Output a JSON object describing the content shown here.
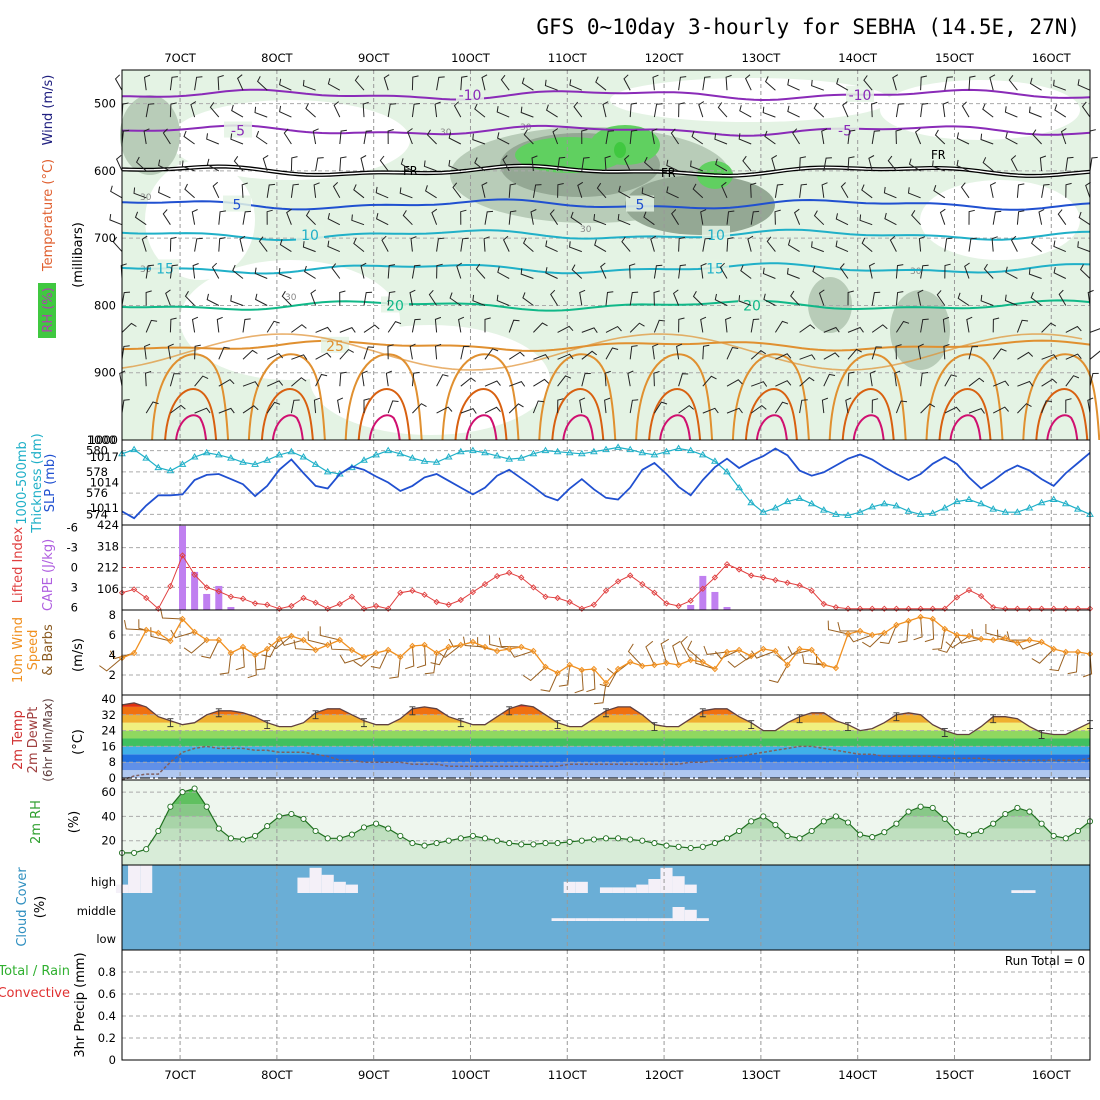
{
  "title": "GFS 0~10day 3-hourly for SEBHA (14.5E, 27N)",
  "colors": {
    "purple": "#8a2bb8",
    "blue": "#2050d0",
    "cyan": "#20b0c8",
    "teal": "#10b888",
    "orange": "#e09030",
    "darkorange": "#d86010",
    "magenta": "#d01070",
    "rh_light": "#e4f3e4",
    "rh_mid": "#b8ccb8",
    "rh_dark": "#94a894",
    "rh_green": "#40c840",
    "cape": "#c080f0",
    "li": "#e04040",
    "wind10": "#f09020",
    "barb10": "#9a6020",
    "cloud_bg": "#6aaed6",
    "cloud_fill": "#f4f0f8"
  },
  "chart_data": [
    {
      "id": "upper-air",
      "type": "contour",
      "ylabel_parts": [
        "RH (%)",
        "Temperature (°C)",
        "Wind (m/s)"
      ],
      "ylabel_sub": "(millibars)",
      "ylim": [
        1000,
        450
      ],
      "yticks": [
        500,
        600,
        700,
        800,
        900,
        1000
      ],
      "xticks": [
        "7OCT",
        "8OCT",
        "9OCT",
        "10OCT",
        "11OCT",
        "12OCT",
        "13OCT",
        "14OCT",
        "15OCT",
        "16OCT"
      ],
      "isotherms": [
        {
          "label": "-10",
          "level": 487,
          "color": "purple"
        },
        {
          "label": "-5",
          "level": 540,
          "color": "purple"
        },
        {
          "label": "FR",
          "level": 600,
          "color": "black"
        },
        {
          "label": "5",
          "level": 650,
          "color": "blue"
        },
        {
          "label": "10",
          "level": 695,
          "color": "cyan"
        },
        {
          "label": "15",
          "level": 745,
          "color": "cyan"
        },
        {
          "label": "20",
          "level": 800,
          "color": "teal"
        },
        {
          "label": "25",
          "level": 860,
          "color": "orange"
        }
      ],
      "rh_labels": [
        "30",
        "30",
        "30",
        "30",
        "30",
        "30"
      ]
    },
    {
      "id": "thickness-slp",
      "type": "line",
      "ylabel_left": "1000-500mb Thickness (dm)",
      "ylabel_right": "SLP (mb)",
      "yticks_left": [
        "580",
        "578",
        "576",
        "574"
      ],
      "yticks_right": [
        "1017",
        "1014",
        "1011"
      ],
      "thickness_dm": [
        579.7,
        580.1,
        579.3,
        578.4,
        578.1,
        578.7,
        579.4,
        579.8,
        579.6,
        579.3,
        578.9,
        578.7,
        579.1,
        579.6,
        579.9,
        579.4,
        578.7,
        578.0,
        577.8,
        578.4,
        579.1,
        579.6,
        580.0,
        579.7,
        579.3,
        579.0,
        578.9,
        579.4,
        579.9,
        580.0,
        579.8,
        579.5,
        579.2,
        579.3,
        579.7,
        580.0,
        579.9,
        579.8,
        579.7,
        579.9,
        580.1,
        580.3,
        580.1,
        579.8,
        579.6,
        579.9,
        580.2,
        580.0,
        579.6,
        579.0,
        578.0,
        576.5,
        575.1,
        574.2,
        574.6,
        575.2,
        575.5,
        575.0,
        574.4,
        574.0,
        573.9,
        574.2,
        574.7,
        575.0,
        574.8,
        574.3,
        574.0,
        574.1,
        574.6,
        575.2,
        575.4,
        575.0,
        574.5,
        574.2,
        574.2,
        574.6,
        575.1,
        575.4,
        575.0,
        574.5,
        574.0
      ],
      "slp_mb": [
        1010.6,
        1009.8,
        1011.3,
        1012.5,
        1012.5,
        1012.6,
        1014.3,
        1014.9,
        1015.0,
        1014.4,
        1013.8,
        1012.4,
        1013.6,
        1015.5,
        1016.7,
        1015.1,
        1013.6,
        1013.3,
        1015.0,
        1015.9,
        1015.5,
        1014.7,
        1014.0,
        1013.0,
        1013.6,
        1014.6,
        1015.0,
        1014.2,
        1013.4,
        1012.6,
        1013.4,
        1014.8,
        1015.5,
        1014.5,
        1013.5,
        1012.4,
        1011.9,
        1013.3,
        1014.4,
        1013.2,
        1012.2,
        1012.0,
        1013.4,
        1015.5,
        1016.3,
        1015.0,
        1013.5,
        1012.5,
        1014.3,
        1015.8,
        1016.8,
        1015.7,
        1016.5,
        1017.1,
        1018.0,
        1017.2,
        1015.4,
        1014.8,
        1015.2,
        1016.0,
        1016.8,
        1017.3,
        1016.7,
        1015.8,
        1015.0,
        1014.3,
        1015.0,
        1016.2,
        1017.0,
        1016.2,
        1014.6,
        1013.3,
        1014.2,
        1015.3,
        1016.0,
        1015.4,
        1014.4,
        1013.6,
        1015.1,
        1016.3,
        1017.5
      ]
    },
    {
      "id": "cape-li",
      "type": "bar",
      "ylabel_left": "Lifted Index",
      "ylabel_right": "CAPE (J/kg)",
      "yticks_left": [
        "-6",
        "-3",
        "0",
        "3",
        "6"
      ],
      "yticks_right": [
        "424",
        "318",
        "212",
        "106"
      ],
      "lifted_index": [
        3.8,
        3.3,
        4.6,
        6.2,
        2.8,
        -1.8,
        1.1,
        3.0,
        3.6,
        4.4,
        4.7,
        5.4,
        5.6,
        6.2,
        5.8,
        4.6,
        5.3,
        6.2,
        5.5,
        4.4,
        6.2,
        5.8,
        6.2,
        3.8,
        3.5,
        4.1,
        5.2,
        5.6,
        4.9,
        3.7,
        2.5,
        1.3,
        0.8,
        1.5,
        3.0,
        4.4,
        4.6,
        5.2,
        6.2,
        5.6,
        3.5,
        2.1,
        1.2,
        2.5,
        3.8,
        5.4,
        5.8,
        5.0,
        3.2,
        1.5,
        -0.5,
        0.3,
        1.2,
        1.5,
        1.9,
        2.3,
        2.7,
        3.5,
        5.5,
        6.0,
        6.2,
        6.2,
        6.2,
        6.2,
        6.2,
        6.2,
        6.2,
        6.2,
        6.2,
        4.5,
        3.4,
        4.3,
        6.0,
        6.2,
        6.2,
        6.2,
        6.2,
        6.2,
        6.2,
        6.2,
        6.2
      ],
      "cape_bars": [
        {
          "i": 5,
          "value": 420
        },
        {
          "i": 6,
          "value": 190
        },
        {
          "i": 7,
          "value": 80
        },
        {
          "i": 8,
          "value": 120
        },
        {
          "i": 9,
          "value": 15
        },
        {
          "i": 47,
          "value": 25
        },
        {
          "i": 48,
          "value": 170
        },
        {
          "i": 49,
          "value": 90
        },
        {
          "i": 50,
          "value": 15
        }
      ]
    },
    {
      "id": "wind10",
      "type": "line",
      "ylabel": "10m Wind Speed & Barbs (m/s)",
      "ylabel_parts": [
        "10m Wind",
        "Speed",
        "& Barbs",
        "(m/s)"
      ],
      "yticks": [
        "8",
        "6",
        "4",
        "2"
      ],
      "speed_ms": [
        3.7,
        4.2,
        6.5,
        6.2,
        5.4,
        7.6,
        6.3,
        5.5,
        5.5,
        4.2,
        4.8,
        4.0,
        4.6,
        5.6,
        5.9,
        5.5,
        4.5,
        5.0,
        5.5,
        4.5,
        3.8,
        4.2,
        4.5,
        3.8,
        4.9,
        5.0,
        4.2,
        4.8,
        5.0,
        5.3,
        4.8,
        4.4,
        4.6,
        4.8,
        4.4,
        2.8,
        2.2,
        3.0,
        2.5,
        2.6,
        1.2,
        2.6,
        3.3,
        2.9,
        3.0,
        3.2,
        3.0,
        3.5,
        3.3,
        2.6,
        4.3,
        4.5,
        3.9,
        4.6,
        4.4,
        3.0,
        4.6,
        4.5,
        3.0,
        2.7,
        6.1,
        6.4,
        6.0,
        6.2,
        7.0,
        7.4,
        7.8,
        7.6,
        6.6,
        6.0,
        5.9,
        5.6,
        5.5,
        5.7,
        5.2,
        5.5,
        5.3,
        4.6,
        4.3,
        4.3,
        4.1
      ]
    },
    {
      "id": "temp2m",
      "type": "area",
      "ylabel_parts": [
        "2m Temp",
        "2m DewPt",
        "(6hr Min/Max)",
        "(°C)"
      ],
      "yticks": [
        "40",
        "32",
        "24",
        "16",
        "8",
        "0"
      ],
      "temp_c": [
        37,
        38,
        36,
        31,
        29,
        27,
        28,
        32,
        34,
        34,
        33,
        31,
        28,
        26,
        26,
        28,
        33,
        35,
        35,
        32,
        29,
        27,
        27,
        30,
        35,
        36,
        35,
        31,
        29,
        27,
        27,
        31,
        35,
        37,
        36,
        32,
        28,
        26,
        26,
        30,
        34,
        36,
        36,
        32,
        27,
        26,
        26,
        30,
        34,
        35,
        35,
        31,
        28,
        24,
        24,
        28,
        31,
        33,
        33,
        29,
        27,
        24,
        25,
        28,
        32,
        33,
        32,
        27,
        24,
        22,
        22,
        26,
        31,
        31,
        30,
        26,
        23,
        22,
        22,
        25,
        28
      ],
      "dewpt_c": [
        -1,
        1,
        2,
        2,
        8,
        13,
        15,
        16,
        15,
        15,
        15,
        14,
        14,
        13,
        13,
        13,
        12,
        11,
        9,
        9,
        8,
        8,
        8,
        8,
        7,
        7,
        7,
        6,
        6,
        6,
        6,
        6,
        6,
        6,
        6,
        6,
        6,
        7,
        7,
        7,
        7,
        7,
        7,
        7,
        7,
        7,
        7,
        8,
        8,
        9,
        10,
        11,
        12,
        13,
        14,
        15,
        16,
        16,
        15,
        14,
        13,
        12,
        12,
        11,
        11,
        11,
        11,
        11,
        10,
        10,
        10,
        10,
        9,
        9,
        9,
        9,
        9,
        9,
        9,
        9,
        10
      ]
    },
    {
      "id": "rh2m",
      "type": "area",
      "ylabel": "2m RH",
      "yunit": "(%)",
      "yticks": [
        "60",
        "40",
        "20"
      ],
      "rh_pct": [
        10,
        10,
        13,
        28,
        48,
        60,
        63,
        48,
        30,
        22,
        21,
        24,
        32,
        40,
        42,
        38,
        28,
        22,
        22,
        25,
        31,
        34,
        30,
        24,
        18,
        16,
        18,
        20,
        22,
        24,
        22,
        20,
        18,
        17,
        17,
        18,
        18,
        19,
        20,
        21,
        22,
        22,
        21,
        20,
        18,
        16,
        15,
        14,
        15,
        18,
        22,
        28,
        36,
        40,
        33,
        24,
        22,
        28,
        36,
        40,
        35,
        25,
        23,
        27,
        34,
        44,
        48,
        47,
        38,
        27,
        25,
        28,
        34,
        42,
        47,
        44,
        34,
        24,
        22,
        28,
        36
      ]
    },
    {
      "id": "cloud",
      "type": "heatmap",
      "ylabel": "Cloud Cover (%)",
      "ylabel_parts": [
        "Cloud Cover",
        "(%)"
      ],
      "levels": [
        "high",
        "middle",
        "low"
      ],
      "high_cover": [
        30,
        100,
        100,
        0,
        0,
        0,
        0,
        0,
        0,
        0,
        0,
        0,
        0,
        0,
        0,
        55,
        90,
        65,
        40,
        30,
        0,
        0,
        0,
        0,
        0,
        0,
        0,
        0,
        0,
        0,
        0,
        0,
        0,
        0,
        0,
        0,
        0,
        40,
        40,
        0,
        20,
        20,
        20,
        30,
        50,
        90,
        60,
        30,
        0,
        0,
        0,
        0,
        0,
        0,
        0,
        0,
        0,
        0,
        0,
        0,
        0,
        0,
        0,
        0,
        0,
        0,
        0,
        0,
        0,
        0,
        0,
        0,
        0,
        0,
        10,
        10,
        0,
        0,
        0,
        0,
        0
      ],
      "mid_cover": [
        0,
        0,
        0,
        0,
        0,
        0,
        0,
        0,
        0,
        0,
        0,
        0,
        0,
        0,
        0,
        0,
        0,
        0,
        0,
        0,
        0,
        0,
        0,
        0,
        0,
        0,
        0,
        0,
        0,
        0,
        0,
        0,
        0,
        0,
        0,
        0,
        10,
        10,
        10,
        10,
        10,
        10,
        10,
        10,
        10,
        10,
        50,
        40,
        10,
        0,
        0,
        0,
        0,
        0,
        0,
        0,
        0,
        0,
        0,
        0,
        0,
        0,
        0,
        0,
        0,
        0,
        0,
        0,
        0,
        0,
        0,
        0,
        0,
        0,
        0,
        0,
        0,
        0,
        0,
        0,
        0
      ]
    },
    {
      "id": "precip",
      "type": "bar",
      "ylabel": "3hr Precip (mm)",
      "ylabel_parts": [
        "Total / Rain",
        "Convective"
      ],
      "yticks": [
        "0.8",
        "0.6",
        "0.4",
        "0.2",
        "0"
      ],
      "precip_mm": [
        0,
        0,
        0,
        0,
        0,
        0,
        0,
        0,
        0,
        0,
        0,
        0,
        0,
        0,
        0,
        0,
        0,
        0,
        0,
        0,
        0,
        0,
        0,
        0,
        0,
        0,
        0,
        0,
        0,
        0,
        0,
        0,
        0,
        0,
        0,
        0,
        0,
        0,
        0,
        0,
        0,
        0,
        0,
        0,
        0,
        0,
        0,
        0,
        0,
        0,
        0,
        0,
        0,
        0,
        0,
        0,
        0,
        0,
        0,
        0,
        0,
        0,
        0,
        0,
        0,
        0,
        0,
        0,
        0,
        0,
        0,
        0,
        0,
        0,
        0,
        0,
        0,
        0,
        0,
        0,
        0
      ],
      "annotation": "Run Total = 0"
    }
  ]
}
